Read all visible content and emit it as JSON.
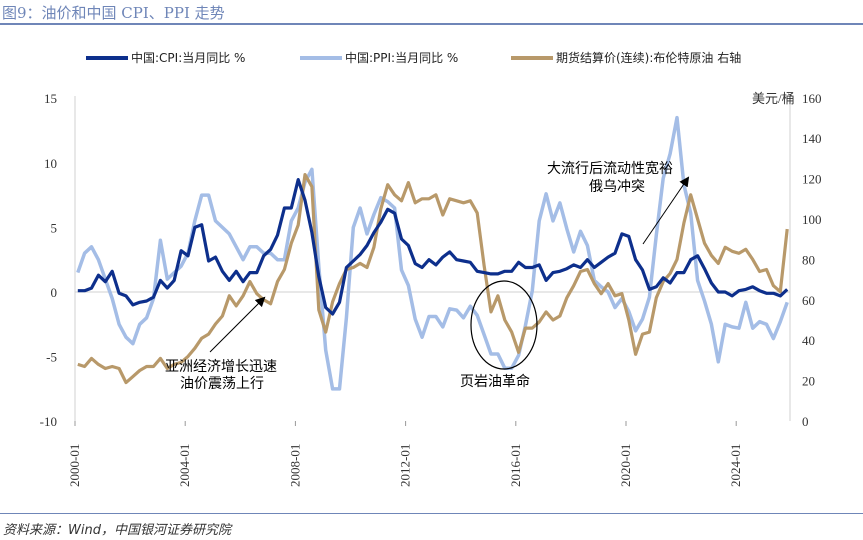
{
  "title": "图9：油价和中国 CPI、PPI 走势",
  "source": "资料来源：Wind，中国银河证券研究院",
  "chart_data": {
    "type": "line",
    "title": "图9：油价和中国 CPI、PPI 走势",
    "x_ticks": [
      "2000-01",
      "2004-01",
      "2008-01",
      "2012-01",
      "2016-01",
      "2020-01",
      "2024-01"
    ],
    "y_left": {
      "range": [
        -10,
        15
      ],
      "ticks": [
        "15",
        "10",
        "5",
        "0",
        "-5",
        "-10"
      ]
    },
    "y_right": {
      "range": [
        0,
        160
      ],
      "ticks": [
        "160",
        "140",
        "120",
        "100",
        "80",
        "60",
        "40",
        "20",
        "0"
      ],
      "unit": "美元/桶"
    },
    "legend_position": "top",
    "grid": false,
    "x_start": 2000.0,
    "x_step_years": 0.25,
    "series": [
      {
        "name": "中国:CPI:当月同比 %",
        "axis": "left",
        "color": "#0d2f8c",
        "values": [
          0.1,
          0.1,
          0.3,
          1.3,
          0.8,
          1.6,
          -0.1,
          -0.3,
          -1.0,
          -0.8,
          -0.7,
          -0.4,
          0.9,
          0.3,
          0.9,
          3.2,
          2.8,
          5.0,
          5.2,
          2.4,
          2.7,
          1.6,
          0.9,
          1.6,
          0.8,
          1.5,
          1.5,
          2.8,
          3.3,
          4.4,
          6.5,
          6.5,
          8.7,
          7.1,
          4.6,
          1.2,
          -1.2,
          -1.7,
          -0.8,
          1.9,
          2.4,
          2.9,
          3.6,
          4.6,
          5.4,
          6.4,
          6.1,
          4.1,
          3.6,
          2.2,
          1.9,
          2.5,
          2.1,
          2.7,
          3.1,
          2.5,
          2.4,
          2.3,
          1.6,
          1.5,
          1.4,
          1.4,
          1.6,
          1.6,
          2.3,
          1.9,
          1.9,
          2.1,
          0.9,
          1.5,
          1.6,
          1.8,
          2.1,
          1.9,
          2.5,
          1.9,
          2.3,
          2.7,
          3.0,
          4.5,
          4.3,
          2.5,
          1.7,
          0.2,
          0.4,
          1.1,
          0.7,
          1.5,
          1.5,
          2.5,
          2.8,
          1.8,
          0.7,
          0.0,
          0.0,
          -0.3,
          0.1,
          0.2,
          0.4,
          0.1,
          -0.1,
          -0.1,
          -0.3,
          0.2
        ]
      },
      {
        "name": "中国:PPI:当月同比 %",
        "axis": "left",
        "color": "#a4bde6",
        "values": [
          1.5,
          3.0,
          3.5,
          2.5,
          1.0,
          -0.5,
          -2.5,
          -3.5,
          -4.0,
          -2.5,
          -2.0,
          -0.5,
          4.0,
          1.0,
          1.5,
          2.0,
          3.0,
          5.5,
          7.5,
          7.5,
          5.5,
          5.0,
          4.5,
          3.5,
          2.5,
          3.5,
          3.5,
          3.0,
          3.0,
          2.5,
          2.5,
          5.5,
          6.5,
          8.5,
          9.5,
          2.0,
          -4.5,
          -7.5,
          -7.5,
          -2.0,
          5.0,
          6.5,
          4.5,
          6.0,
          7.3,
          7.0,
          6.5,
          1.7,
          0.5,
          -2.1,
          -3.5,
          -1.9,
          -1.9,
          -2.7,
          -1.3,
          -1.4,
          -2.0,
          -1.1,
          -1.8,
          -3.3,
          -4.8,
          -4.8,
          -5.9,
          -5.9,
          -4.9,
          -2.6,
          0.1,
          5.5,
          7.6,
          5.5,
          6.9,
          4.9,
          3.1,
          4.7,
          3.6,
          0.9,
          0.4,
          0.0,
          -1.2,
          -0.5,
          -1.5,
          -3.0,
          -2.1,
          -0.4,
          4.4,
          8.8,
          10.7,
          13.5,
          8.3,
          6.1,
          0.9,
          -0.7,
          -2.5,
          -5.4,
          -2.5,
          -2.7,
          -2.8,
          -0.8,
          -2.8,
          -2.3,
          -2.5,
          -3.6,
          -2.3,
          -0.8
        ]
      },
      {
        "name": "期货结算价(连续):布伦特原油 右轴",
        "axis": "right",
        "color": "#b8996a",
        "values": [
          28,
          27,
          31,
          28,
          26,
          27,
          26,
          19,
          22,
          25,
          27,
          27,
          31,
          26,
          28,
          29,
          32,
          36,
          41,
          43,
          48,
          52,
          62,
          57,
          62,
          69,
          63,
          60,
          58,
          69,
          75,
          88,
          97,
          122,
          116,
          55,
          44,
          59,
          68,
          75,
          76,
          78,
          76,
          86,
          105,
          117,
          112,
          109,
          118,
          108,
          110,
          110,
          112,
          102,
          110,
          109,
          108,
          109,
          103,
          77,
          54,
          62,
          50,
          44,
          34,
          46,
          46,
          49,
          54,
          50,
          52,
          61,
          67,
          74,
          75,
          68,
          63,
          68,
          62,
          63,
          50,
          33,
          43,
          44,
          61,
          69,
          73,
          80,
          98,
          112,
          100,
          88,
          82,
          78,
          86,
          84,
          83,
          85,
          80,
          74,
          75,
          67,
          64,
          95
        ]
      }
    ],
    "annotations": [
      {
        "text": [
          "亚洲经济增长迅速",
          "油价震荡上行"
        ]
      },
      {
        "text": [
          "页岩油革命"
        ]
      },
      {
        "text": [
          "大流行后流动性宽裕",
          "俄乌冲突"
        ]
      }
    ]
  }
}
